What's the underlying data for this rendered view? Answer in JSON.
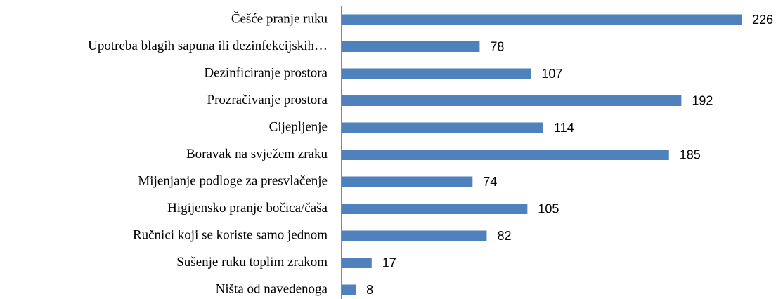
{
  "chart_data": {
    "type": "bar",
    "orientation": "horizontal",
    "categories": [
      "Češće pranje ruku",
      "Upotreba blagih sapuna ili dezinfekcijskih…",
      "Dezinficiranje prostora",
      "Prozračivanje prostora",
      "Cijepljenje",
      "Boravak na svježem zraku",
      "Mijenjanje podloge za presvlačenje",
      "Higijensko pranje bočica/čaša",
      "Ručnici koji se koriste samo jednom",
      "Sušenje ruku toplim zrakom",
      "Ništa od navedenoga"
    ],
    "values": [
      226,
      78,
      107,
      192,
      114,
      185,
      74,
      105,
      82,
      17,
      8
    ],
    "color": "#4f81bd"
  }
}
